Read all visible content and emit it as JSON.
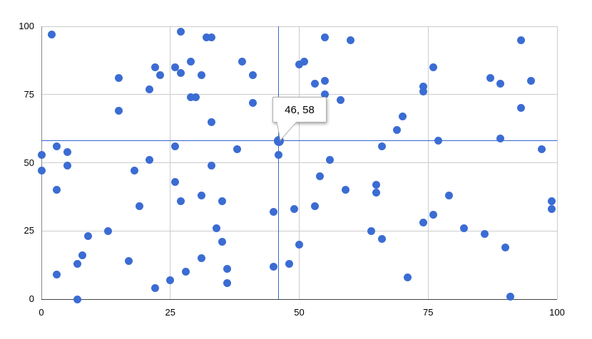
{
  "chart_data": {
    "type": "scatter",
    "title": "",
    "xlabel": "",
    "ylabel": "",
    "xlim": [
      0,
      100
    ],
    "ylim": [
      0,
      100
    ],
    "x_ticks": [
      "0",
      "25",
      "50",
      "75",
      "100"
    ],
    "y_ticks": [
      "0",
      "25",
      "50",
      "75",
      "100"
    ],
    "grid": true,
    "legend_position": "none",
    "series_color": "#3B6CD3",
    "selected_dot_color": "#3B6CD3",
    "crosshair_color": "#3366CC",
    "grid_color": "#cccccc",
    "selected": {
      "x": 46,
      "y": 58,
      "tooltip_label": "46, 58"
    },
    "points": [
      [
        2,
        97
      ],
      [
        27,
        98
      ],
      [
        32,
        96
      ],
      [
        33,
        96
      ],
      [
        55,
        96
      ],
      [
        60,
        95
      ],
      [
        93,
        95
      ],
      [
        29,
        87
      ],
      [
        26,
        85
      ],
      [
        22,
        85
      ],
      [
        27,
        83
      ],
      [
        23,
        82
      ],
      [
        31,
        82
      ],
      [
        41,
        82
      ],
      [
        15,
        81
      ],
      [
        39,
        87
      ],
      [
        50,
        86
      ],
      [
        51,
        87
      ],
      [
        76,
        85
      ],
      [
        87,
        81
      ],
      [
        89,
        79
      ],
      [
        95,
        80
      ],
      [
        53,
        79
      ],
      [
        55,
        80
      ],
      [
        21,
        77
      ],
      [
        74,
        78
      ],
      [
        74,
        76
      ],
      [
        55,
        75
      ],
      [
        29,
        74
      ],
      [
        30,
        74
      ],
      [
        58,
        73
      ],
      [
        41,
        72
      ],
      [
        15,
        69
      ],
      [
        93,
        70
      ],
      [
        70,
        67
      ],
      [
        33,
        65
      ],
      [
        69,
        62
      ],
      [
        3,
        56
      ],
      [
        5,
        54
      ],
      [
        0,
        53
      ],
      [
        26,
        56
      ],
      [
        38,
        55
      ],
      [
        46,
        53
      ],
      [
        56,
        51
      ],
      [
        21,
        51
      ],
      [
        5,
        49
      ],
      [
        0,
        47
      ],
      [
        18,
        47
      ],
      [
        33,
        49
      ],
      [
        66,
        56
      ],
      [
        77,
        58
      ],
      [
        89,
        59
      ],
      [
        97,
        55
      ],
      [
        3,
        40
      ],
      [
        26,
        43
      ],
      [
        31,
        38
      ],
      [
        27,
        36
      ],
      [
        35,
        36
      ],
      [
        54,
        45
      ],
      [
        59,
        40
      ],
      [
        65,
        42
      ],
      [
        65,
        39
      ],
      [
        79,
        38
      ],
      [
        99,
        36
      ],
      [
        99,
        33
      ],
      [
        19,
        34
      ],
      [
        45,
        32
      ],
      [
        49,
        33
      ],
      [
        53,
        34
      ],
      [
        34,
        26
      ],
      [
        35,
        21
      ],
      [
        50,
        20
      ],
      [
        64,
        25
      ],
      [
        76,
        31
      ],
      [
        74,
        28
      ],
      [
        82,
        26
      ],
      [
        86,
        24
      ],
      [
        66,
        22
      ],
      [
        13,
        25
      ],
      [
        9,
        23
      ],
      [
        8,
        16
      ],
      [
        7,
        13
      ],
      [
        17,
        14
      ],
      [
        31,
        15
      ],
      [
        28,
        10
      ],
      [
        25,
        7
      ],
      [
        22,
        4
      ],
      [
        3,
        9
      ],
      [
        7,
        0
      ],
      [
        36,
        11
      ],
      [
        36,
        6
      ],
      [
        45,
        12
      ],
      [
        48,
        13
      ],
      [
        71,
        8
      ],
      [
        90,
        19
      ],
      [
        91,
        1
      ]
    ]
  }
}
